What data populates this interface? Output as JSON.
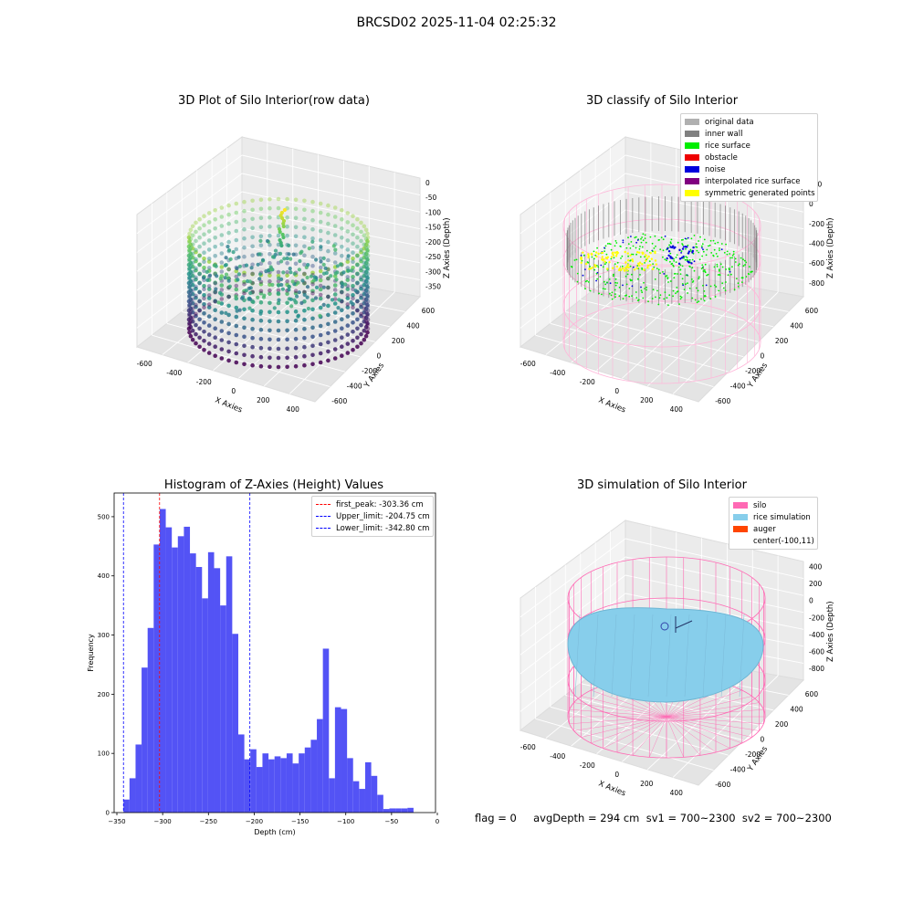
{
  "figure_title": "BRCSD02 2025-11-04 02:25:32",
  "footer": "flag = 0     avgDepth = 294 cm  sv1 = 700~2300  sv2 = 700~2300",
  "chart_data": [
    {
      "type": "scatter3d",
      "title": "3D Plot of Silo Interior(row data)",
      "xlabel": "X Axies",
      "ylabel": "Y Axies",
      "zlabel": "Z Axies (Depth)",
      "x_ticks": [
        "-600",
        "-400",
        "-200",
        "0",
        "200",
        "400"
      ],
      "y_ticks": [
        "-600",
        "-400",
        "-200",
        "0",
        "200",
        "400",
        "600"
      ],
      "z_ticks": [
        "0",
        "-50",
        "-100",
        "-150",
        "-200",
        "-250",
        "-300",
        "-350"
      ],
      "colormap": "viridis"
    },
    {
      "type": "scatter3d",
      "title": "3D classify of Silo Interior",
      "xlabel": "X Axies",
      "ylabel": "Y Axies",
      "zlabel": "Z Axies (Depth)",
      "x_ticks": [
        "-600",
        "-400",
        "-200",
        "0",
        "200",
        "400"
      ],
      "y_ticks": [
        "-600",
        "-400",
        "-200",
        "0",
        "200",
        "400",
        "600"
      ],
      "z_ticks": [
        "200",
        "0",
        "-200",
        "-400",
        "-600",
        "-800"
      ],
      "legend": [
        {
          "label": "original data",
          "color": "#b0b0b0"
        },
        {
          "label": "inner wall",
          "color": "#808080"
        },
        {
          "label": "rice surface",
          "color": "#00ee00"
        },
        {
          "label": "obstacle",
          "color": "#ee0000"
        },
        {
          "label": "noise",
          "color": "#0000dd"
        },
        {
          "label": "interpolated rice surface",
          "color": "#800080"
        },
        {
          "label": "symmetric generated points",
          "color": "#ffff00"
        }
      ]
    },
    {
      "type": "bar",
      "title": "Histogram of Z-Axies (Height) Values",
      "xlabel": "Depth (cm)",
      "ylabel": "Frequency",
      "xlim": [
        -353,
        -2
      ],
      "ylim": [
        0,
        540
      ],
      "x_ticks": [
        -350,
        -300,
        -250,
        -200,
        -150,
        -100,
        -50,
        0
      ],
      "y_ticks": [
        0,
        100,
        200,
        300,
        400,
        500
      ],
      "bin_start": -342.8,
      "bin_width": 6.6,
      "values": [
        22,
        58,
        115,
        245,
        312,
        453,
        513,
        482,
        448,
        467,
        483,
        438,
        415,
        362,
        440,
        413,
        350,
        433,
        302,
        132,
        90,
        107,
        77,
        100,
        90,
        95,
        92,
        100,
        83,
        100,
        110,
        123,
        158,
        277,
        58,
        178,
        175,
        92,
        53,
        40,
        85,
        62,
        30,
        6,
        7,
        7,
        7,
        8
      ],
      "vlines": [
        {
          "label": "first_peak: -303.36 cm",
          "x": -303.36,
          "color": "#ff0000"
        },
        {
          "label": "Upper_limit: -204.75 cm",
          "x": -204.75,
          "color": "#0000ff"
        },
        {
          "label": "Lower_limit: -342.80 cm",
          "x": -342.8,
          "color": "#0000ff"
        }
      ],
      "bar_color": "#5050f5"
    },
    {
      "type": "surface3d",
      "title": "3D simulation of Silo Interior",
      "xlabel": "X Axies",
      "ylabel": "Y Axies",
      "zlabel": "Z Axies (Depth)",
      "x_ticks": [
        "-600",
        "-400",
        "-200",
        "0",
        "200",
        "400"
      ],
      "y_ticks": [
        "-600",
        "-400",
        "-200",
        "0",
        "200",
        "400",
        "600"
      ],
      "z_ticks": [
        "400",
        "200",
        "0",
        "-200",
        "-400",
        "-600",
        "-800"
      ],
      "legend": [
        {
          "label": "silo",
          "color": "#ff69b4"
        },
        {
          "label": "rice simulation",
          "color": "#87ceeb"
        },
        {
          "label": "auger",
          "color": "#ff4500"
        },
        {
          "label": "center(-100,11)",
          "color": ""
        }
      ]
    }
  ]
}
